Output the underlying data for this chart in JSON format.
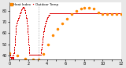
{
  "bg_color": "#e8e8e8",
  "plot_bg": "#ffffff",
  "dot_color": "#dd0000",
  "orange_color": "#ff8800",
  "vline_color": "#999999",
  "legend_label1": "Outdoor Temp",
  "legend_label2": "Heat Index",
  "ylim": [
    36,
    88
  ],
  "xlim": [
    0,
    1440
  ],
  "ylabel_ticks": [
    40,
    50,
    60,
    70,
    80
  ],
  "vline_x": 370,
  "temp_data": [
    42,
    42,
    42,
    41,
    41,
    41,
    40,
    40,
    40,
    39,
    39,
    39,
    38,
    38,
    38,
    37,
    37,
    37,
    36,
    36,
    36,
    36,
    36,
    37,
    37,
    37,
    38,
    38,
    38,
    39,
    39,
    39,
    38,
    38,
    38,
    37,
    37,
    37,
    36,
    36,
    36,
    36,
    36,
    36,
    36,
    37,
    37,
    38,
    38,
    39,
    39,
    40,
    40,
    41,
    41,
    42,
    42,
    43,
    43,
    44,
    44,
    45,
    46,
    47,
    48,
    49,
    50,
    51,
    52,
    53,
    54,
    55,
    56,
    57,
    58,
    59,
    60,
    61,
    62,
    63,
    64,
    65,
    65,
    66,
    66,
    67,
    67,
    68,
    68,
    68,
    68,
    69,
    69,
    69,
    69,
    69,
    69,
    70,
    70,
    70,
    70,
    71,
    71,
    71,
    71,
    71,
    72,
    72,
    72,
    72,
    72,
    72,
    73,
    73,
    73,
    73,
    74,
    74,
    74,
    74,
    74,
    75,
    75,
    75,
    75,
    75,
    75,
    76,
    76,
    76,
    76,
    76,
    76,
    77,
    77,
    77,
    77,
    78,
    78,
    78,
    78,
    78,
    79,
    79,
    79,
    79,
    79,
    79,
    80,
    80,
    80,
    80,
    80,
    80,
    81,
    81,
    81,
    81,
    82,
    82,
    82,
    82,
    82,
    82,
    82,
    82,
    82,
    83,
    83,
    83,
    83,
    83,
    83,
    83,
    83,
    83,
    83,
    83,
    83,
    83,
    83,
    83,
    83,
    83,
    83,
    82,
    82,
    82,
    82,
    82,
    82,
    81,
    81,
    81,
    80,
    80,
    80,
    79,
    79,
    79,
    78,
    78,
    78,
    77,
    77,
    77,
    76,
    76,
    76,
    76,
    75,
    75,
    74,
    74,
    74,
    73,
    73,
    72,
    72,
    71,
    71,
    71,
    70,
    70,
    69,
    69,
    68,
    67,
    67,
    66,
    65,
    64,
    63,
    62,
    61,
    60,
    59,
    58,
    57,
    56,
    55,
    54,
    53,
    52,
    51,
    50,
    49,
    48,
    47,
    46,
    45,
    44,
    43,
    42,
    41,
    40,
    40,
    40,
    40,
    40,
    40,
    40,
    40,
    40,
    40,
    40,
    40,
    40,
    40,
    40,
    40,
    40,
    40,
    40,
    40,
    40,
    40,
    40,
    40,
    40,
    40,
    40,
    40,
    40,
    40,
    40,
    40,
    40,
    40,
    40,
    40,
    40,
    40,
    40,
    40,
    40,
    40,
    40,
    40,
    40,
    40,
    40,
    40,
    40,
    40,
    40,
    40,
    40,
    40,
    40,
    40,
    40,
    40,
    40,
    40,
    40,
    40,
    40,
    40,
    40,
    40,
    40,
    40,
    40,
    40,
    40,
    40,
    40,
    40,
    40,
    40,
    40,
    40,
    40,
    40,
    40,
    40,
    40,
    40,
    40,
    40,
    40,
    40,
    40,
    40,
    40,
    40,
    40,
    40,
    40,
    40,
    40,
    40,
    40,
    40,
    40,
    40,
    40,
    40,
    40,
    40,
    40,
    40,
    40,
    40,
    40,
    40,
    40,
    40,
    40,
    40,
    40,
    40,
    40,
    40,
    40,
    40,
    40,
    40,
    40,
    40,
    40,
    40,
    40,
    40,
    40,
    40,
    40,
    40,
    40,
    40,
    40,
    40,
    40,
    40,
    40,
    40,
    40,
    40,
    40,
    41,
    41,
    42,
    42,
    43,
    43,
    44,
    44,
    45,
    45,
    46,
    46,
    47,
    47,
    48,
    48,
    49,
    49,
    50,
    50,
    51,
    51,
    52,
    52,
    53,
    53,
    54,
    55,
    55,
    56,
    56,
    57,
    57,
    58,
    58,
    59,
    59,
    60,
    60,
    61,
    61,
    62,
    62,
    63,
    63,
    64,
    64,
    64,
    65,
    65,
    65,
    66,
    66,
    66,
    67,
    67,
    67,
    68,
    68,
    68,
    68,
    68,
    68,
    69,
    69,
    69,
    69,
    69,
    70,
    70,
    70,
    70,
    70,
    71,
    71,
    71,
    71,
    71,
    72,
    72,
    72,
    72,
    72,
    72,
    73,
    73,
    73,
    73,
    73,
    73,
    74,
    74,
    74,
    74,
    74,
    74,
    74,
    74,
    75,
    75,
    75,
    75,
    75,
    75,
    75,
    75,
    76,
    76,
    76,
    76,
    76,
    76,
    76,
    76,
    76,
    76,
    76,
    77,
    77,
    77,
    77,
    77,
    77,
    77,
    77,
    77,
    77,
    77,
    77,
    77,
    77,
    77,
    77,
    77,
    77,
    77,
    77,
    77,
    77,
    77,
    77,
    77,
    77,
    77,
    77,
    77,
    77,
    77,
    77,
    77,
    77,
    77,
    77,
    77,
    77,
    77,
    77,
    77,
    77,
    77,
    77,
    77,
    77,
    77,
    77,
    77,
    77,
    77,
    77,
    77,
    77,
    77,
    77,
    77,
    77,
    77,
    77,
    77,
    77,
    77,
    77,
    77,
    77,
    77,
    77,
    77,
    77,
    77,
    77,
    77,
    77,
    77,
    77,
    77,
    77,
    77,
    77,
    77,
    77,
    77,
    77,
    77,
    77,
    77,
    77,
    77,
    77,
    77,
    77,
    77,
    77,
    77,
    77,
    77,
    77,
    77,
    77,
    77,
    77,
    77,
    77,
    77,
    77,
    77,
    77,
    77,
    77,
    77,
    77,
    77,
    77,
    77,
    77,
    77,
    77,
    77,
    77,
    77,
    77,
    77,
    77,
    77,
    77,
    77,
    77,
    77,
    77,
    77,
    77,
    77,
    77,
    77,
    77,
    77,
    77,
    77,
    77,
    77,
    77,
    77,
    77,
    77,
    77,
    77,
    77,
    77,
    77,
    77,
    77,
    77,
    77,
    77,
    77,
    77,
    77,
    77,
    77,
    77,
    77,
    77,
    77,
    77,
    77,
    77,
    77,
    77,
    77,
    77,
    77,
    77,
    77,
    77,
    77,
    77,
    77,
    77,
    77,
    77,
    77,
    77,
    77,
    77,
    77,
    77,
    77,
    77,
    77,
    77,
    77,
    77,
    77,
    77,
    77,
    77,
    77,
    77,
    77,
    77,
    77,
    77,
    77,
    77,
    77,
    77,
    77,
    77,
    77,
    77,
    77,
    77,
    77,
    77,
    77,
    77,
    77,
    77,
    77,
    77,
    77,
    77,
    77,
    77,
    77,
    77,
    77,
    77,
    77,
    77,
    77,
    77,
    77,
    77,
    77,
    77,
    77,
    77,
    77,
    77,
    77,
    77,
    77,
    77,
    77,
    77,
    77,
    77,
    77,
    77,
    77,
    77,
    77,
    77,
    77,
    77,
    77,
    77,
    77,
    77,
    77,
    77,
    77,
    77,
    77,
    77,
    77,
    77,
    77,
    77,
    77,
    77,
    77,
    77,
    77,
    77,
    77,
    77,
    77,
    77,
    77,
    77,
    77,
    77,
    77,
    77,
    77,
    77,
    77,
    77,
    77,
    77,
    77,
    77,
    77,
    77,
    77,
    77,
    77,
    77,
    77,
    77,
    77,
    77,
    77,
    77,
    77,
    77,
    77,
    77,
    77,
    77,
    77,
    77,
    77,
    77,
    77,
    77,
    77,
    77,
    77,
    77,
    77,
    77,
    77,
    77,
    77,
    77,
    77,
    77,
    77,
    77,
    77,
    77,
    77,
    77,
    77,
    77,
    77,
    77,
    77,
    77,
    77,
    77,
    77,
    77,
    77,
    77,
    77,
    77,
    77,
    77,
    77,
    77,
    77,
    77,
    77,
    77,
    77,
    77,
    77,
    77,
    77,
    77,
    77,
    77,
    77,
    77,
    77,
    77,
    77,
    77,
    77,
    77,
    77,
    77,
    77,
    77,
    77,
    77,
    77,
    77,
    77,
    77,
    77,
    77,
    77,
    77,
    77,
    77,
    77,
    77,
    77,
    77,
    77,
    77,
    77,
    77,
    77,
    77,
    77,
    77,
    77,
    77,
    77,
    77,
    77,
    77,
    77,
    77,
    77,
    77,
    77,
    77,
    77,
    77,
    77,
    77,
    77,
    77,
    77,
    77,
    77,
    77,
    77,
    77,
    77,
    77,
    77,
    77,
    77,
    77,
    77,
    77,
    77,
    77,
    77,
    77,
    77,
    77,
    77,
    77,
    77,
    77,
    77,
    77,
    77,
    77,
    77,
    77,
    77,
    77,
    77,
    77,
    77,
    77,
    77,
    77,
    77,
    77,
    77,
    77,
    77,
    77,
    77,
    77,
    77,
    77,
    77,
    77,
    77,
    77,
    77,
    77,
    77,
    77,
    77,
    77,
    77,
    77,
    77,
    77,
    77,
    77,
    77,
    77,
    77,
    77,
    77,
    77,
    77,
    77,
    77,
    77,
    77,
    77,
    77,
    77,
    77,
    77,
    77,
    77,
    77,
    77,
    77,
    77,
    77,
    77,
    77,
    77,
    77,
    77,
    77,
    77,
    77,
    77,
    77,
    77,
    77,
    77,
    77,
    77,
    77,
    77,
    77,
    77,
    77,
    77,
    77,
    77,
    77,
    77,
    77,
    77,
    77,
    77,
    77,
    77,
    77,
    77,
    77,
    77,
    77,
    77,
    77,
    77,
    77,
    77,
    77,
    77,
    77,
    77,
    77,
    77,
    77,
    77,
    77,
    77,
    77,
    77,
    77,
    77,
    77,
    77,
    77,
    77,
    77,
    77,
    77,
    77,
    77,
    77,
    77,
    77,
    77,
    77,
    77,
    77,
    77,
    77,
    77,
    77,
    77,
    77,
    77,
    77,
    77,
    77,
    77,
    77,
    77,
    77,
    77,
    77,
    77,
    77,
    77,
    77,
    77,
    77,
    77,
    77,
    77,
    77,
    77,
    77,
    77,
    77,
    77,
    77,
    77,
    77,
    77,
    77,
    77,
    77,
    77,
    77,
    77,
    77,
    77,
    77,
    77,
    77,
    77,
    77,
    77,
    77,
    77,
    77,
    77,
    77,
    77,
    77,
    77,
    77,
    77,
    77,
    77,
    77,
    77,
    77,
    77,
    77,
    77,
    77,
    77,
    77,
    77,
    77,
    77,
    77,
    77,
    77,
    77,
    77,
    77,
    77,
    77,
    77,
    77,
    77,
    77,
    77,
    77,
    77,
    77,
    77,
    77,
    77,
    77,
    77,
    77,
    77,
    77,
    77,
    77,
    77,
    77,
    77,
    77,
    77,
    77,
    77,
    77,
    77,
    77,
    77,
    77,
    77,
    77,
    77,
    77,
    77,
    77,
    77,
    77,
    77,
    77,
    77,
    77,
    77,
    77,
    77,
    77,
    77,
    77,
    77,
    77,
    77,
    77,
    77,
    77,
    77,
    77,
    77,
    77,
    77,
    77,
    77,
    77,
    77,
    77,
    77,
    77,
    77,
    77,
    77,
    77,
    77,
    77,
    77,
    77,
    77,
    77,
    77,
    77,
    77,
    77,
    77,
    77,
    77,
    77,
    77,
    77,
    77,
    77,
    77,
    77,
    77,
    77,
    77,
    77,
    77,
    77,
    77,
    77,
    77,
    77,
    77,
    77,
    77,
    77,
    77,
    77,
    77,
    77,
    77,
    77,
    77,
    77,
    77,
    77,
    77,
    77,
    77,
    77,
    77,
    77,
    77,
    77,
    77,
    77,
    77,
    77,
    77,
    77,
    77,
    77,
    77,
    77,
    77,
    77,
    77,
    77,
    77,
    77,
    77,
    77,
    77,
    77,
    77,
    77,
    77,
    77,
    77,
    77,
    77,
    77,
    77,
    77,
    77,
    77,
    77,
    77,
    77,
    77,
    77,
    77,
    77,
    77,
    77,
    77,
    77,
    77,
    77,
    77,
    77,
    77,
    77,
    77,
    77,
    77,
    77,
    77,
    77,
    77,
    77,
    77,
    77,
    77,
    77,
    77,
    77,
    77,
    77,
    77,
    77,
    77,
    77,
    77,
    77,
    77,
    77,
    77,
    77,
    77,
    77,
    77,
    77,
    77,
    77,
    77,
    77,
    77,
    77,
    77,
    77,
    77,
    77,
    77,
    77,
    77,
    77,
    77,
    77,
    77,
    77,
    77,
    77,
    77,
    77,
    77,
    77,
    77,
    77,
    77,
    77,
    77,
    77,
    77,
    77,
    77,
    77,
    77,
    77,
    77,
    77,
    77,
    77,
    77,
    77
  ],
  "heat_data": [
    [
      0,
      42
    ],
    [
      100,
      40
    ],
    [
      200,
      37
    ],
    [
      300,
      36
    ],
    [
      370,
      36
    ],
    [
      430,
      41
    ],
    [
      500,
      50
    ],
    [
      560,
      58
    ],
    [
      620,
      64
    ],
    [
      680,
      69
    ],
    [
      740,
      73
    ],
    [
      800,
      77
    ],
    [
      860,
      80
    ],
    [
      920,
      82
    ],
    [
      960,
      83
    ],
    [
      1020,
      83
    ],
    [
      1080,
      82
    ],
    [
      1140,
      79
    ],
    [
      1200,
      77
    ],
    [
      1260,
      77
    ],
    [
      1320,
      77
    ],
    [
      1380,
      77
    ],
    [
      1439,
      77
    ]
  ],
  "x_tick_positions": [
    0,
    120,
    240,
    360,
    480,
    600,
    720,
    840,
    960,
    1080,
    1200,
    1320,
    1440
  ],
  "x_tick_labels": [
    "0",
    "",
    "2",
    "",
    "4",
    "",
    "6",
    "",
    "8",
    "",
    "10",
    "",
    "12"
  ],
  "title_fontsize": 4,
  "tick_fontsize": 3.5
}
